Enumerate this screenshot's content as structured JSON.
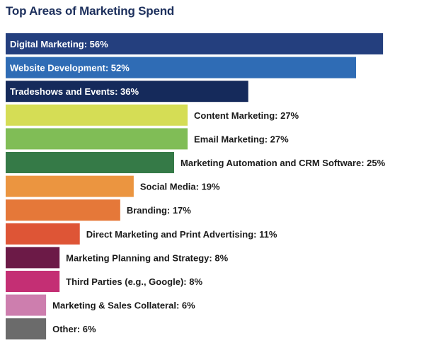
{
  "chart_data": {
    "type": "bar",
    "orientation": "horizontal",
    "title": "Top Areas of Marketing Spend",
    "grid": false,
    "legend": "none",
    "xlim": [
      0,
      60
    ],
    "categories": [
      "Digital Marketing",
      "Website Development",
      "Tradeshows and Events",
      "Content Marketing",
      "Email Marketing",
      "Marketing Automation and CRM Software",
      "Social Media",
      "Branding",
      "Direct Marketing and Print Advertising",
      "Marketing Planning and Strategy",
      "Third Parties (e.g., Google)",
      "Marketing & Sales Collateral",
      "Other"
    ],
    "values": [
      56,
      52,
      36,
      27,
      27,
      25,
      19,
      17,
      11,
      8,
      8,
      6,
      6
    ],
    "labels": [
      "Digital Marketing: 56%",
      "Website Development: 52%",
      "Tradeshows and Events: 36%",
      "Content Marketing: 27%",
      "Email Marketing: 27%",
      "Marketing Automation and CRM Software: 25%",
      "Social Media: 19%",
      "Branding: 17%",
      "Direct Marketing and Print Advertising: 11%",
      "Marketing Planning and Strategy: 8%",
      "Third Parties (e.g., Google): 8%",
      "Marketing & Sales Collateral: 6%",
      "Other: 6%"
    ],
    "colors": [
      "#243f7e",
      "#2f6cb5",
      "#152a5b",
      "#d5dd55",
      "#80bd56",
      "#357a47",
      "#eb9540",
      "#e57839",
      "#de5536",
      "#6c1a47",
      "#c42f74",
      "#cd7eae",
      "#6b6b6b"
    ],
    "label_inside": [
      true,
      true,
      true,
      false,
      false,
      false,
      false,
      false,
      false,
      false,
      false,
      false,
      false
    ]
  }
}
